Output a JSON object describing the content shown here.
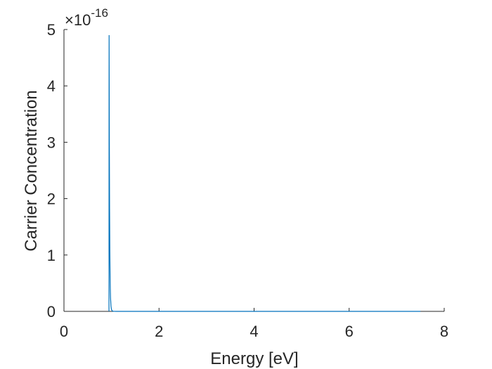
{
  "chart_data": {
    "type": "line",
    "title": "",
    "xlabel": "Energy [eV]",
    "ylabel": "Carrier Concentration",
    "xlim": [
      0,
      8
    ],
    "ylim": [
      0,
      5
    ],
    "y_multiplier_base": "×10",
    "y_multiplier_exponent": "-16",
    "x_tick_labels": [
      "0",
      "2",
      "4",
      "6",
      "8"
    ],
    "y_tick_labels": [
      "0",
      "1",
      "2",
      "3",
      "4",
      "5"
    ],
    "grid": false,
    "line_color": "#0072BD",
    "series": [
      {
        "x": [
          0.947,
          0.95,
          0.955,
          0.96,
          0.965,
          0.97,
          0.975,
          0.98,
          0.99,
          1.0,
          1.02,
          1.05,
          1.1,
          1.2,
          1.5,
          2.0,
          3.0,
          4.0,
          5.0,
          6.0,
          7.0,
          7.5
        ],
        "y": [
          0.0,
          4.9,
          3.0,
          1.82,
          1.1,
          0.66,
          0.4,
          0.24,
          0.09,
          0.03,
          0.005,
          0.0005,
          0.0,
          0.0,
          0.0,
          0.0,
          0.0,
          0.0,
          0.0,
          0.0,
          0.0,
          0.0
        ]
      }
    ]
  }
}
